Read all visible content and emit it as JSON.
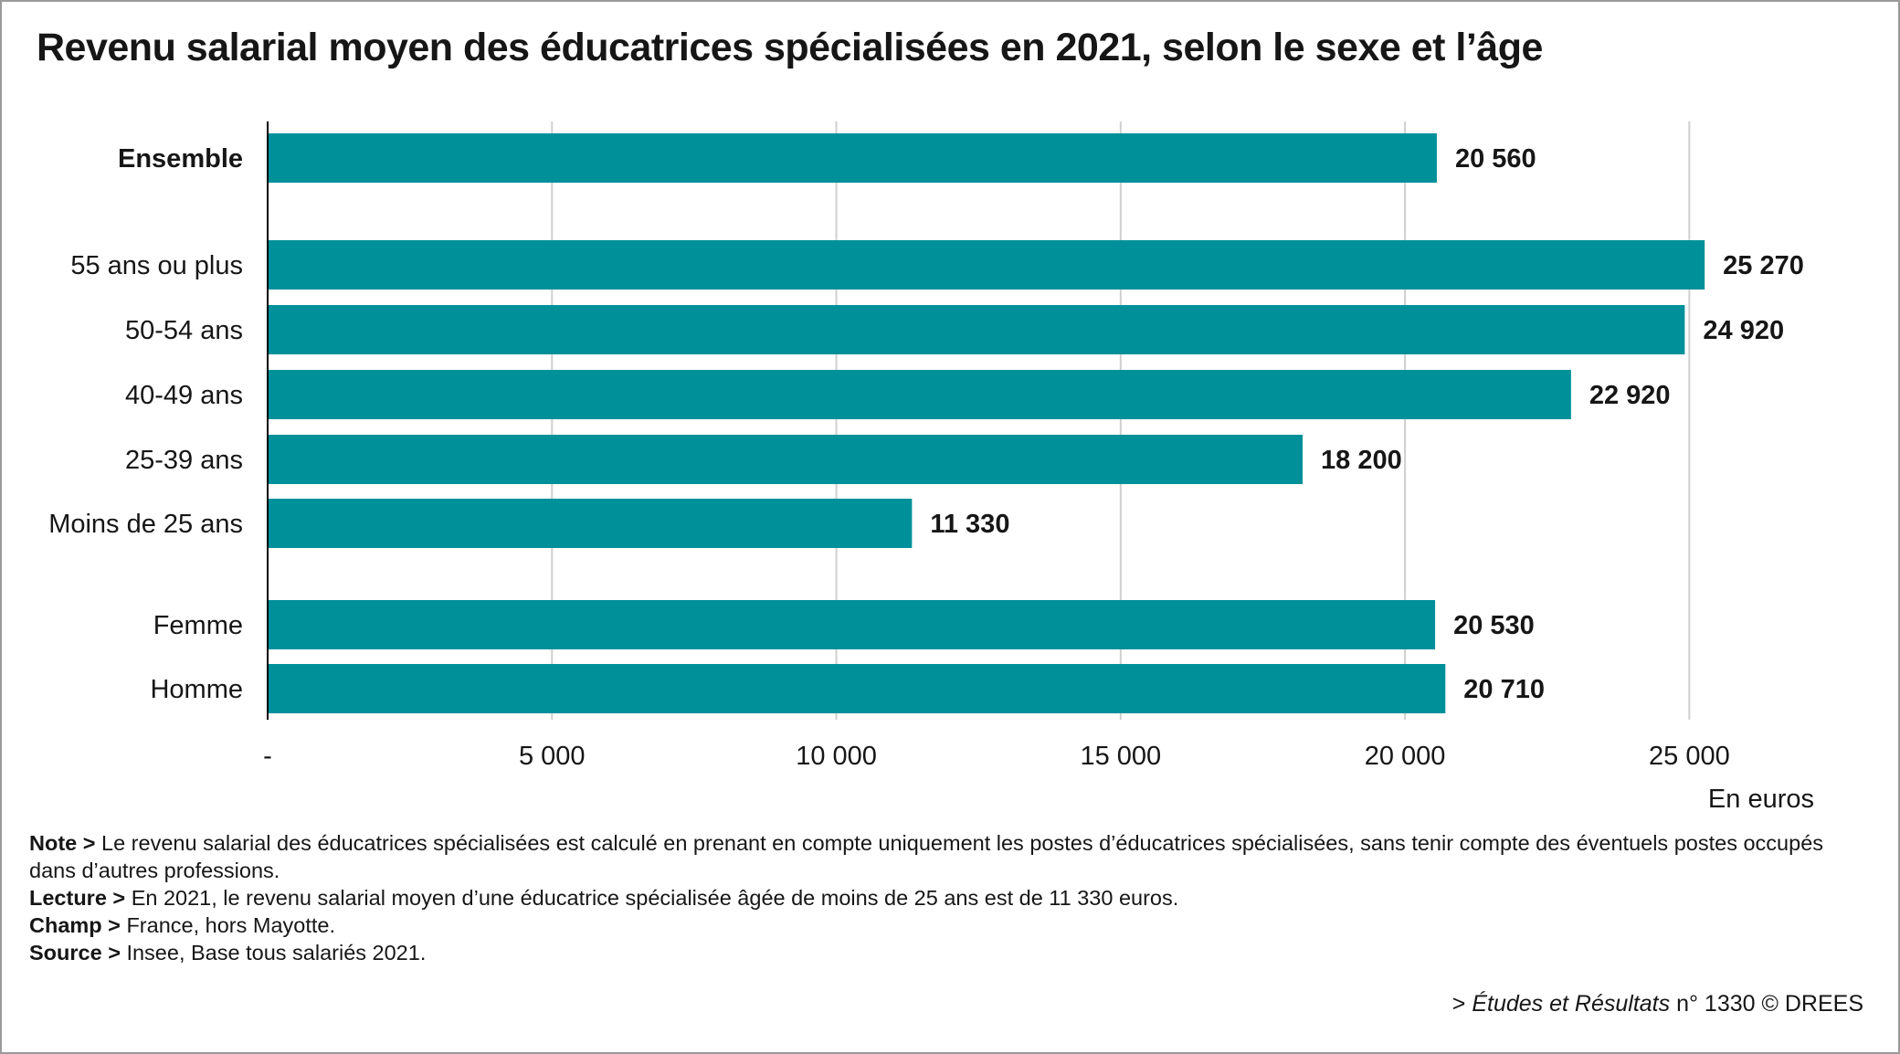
{
  "title": "Revenu salarial moyen des éducatrices spécialisées en 2021, selon le sexe et l’âge",
  "chart_data": {
    "type": "bar",
    "orientation": "horizontal",
    "categories": [
      "Ensemble",
      "55 ans ou plus",
      "50-54 ans",
      "40-49 ans",
      "25-39 ans",
      "Moins de 25 ans",
      "Femme",
      "Homme"
    ],
    "values": [
      20560,
      25270,
      24920,
      22920,
      18200,
      11330,
      20530,
      20710
    ],
    "value_labels": [
      "20 560",
      "25 270",
      "24 920",
      "22 920",
      "18 200",
      "11 330",
      "20 530",
      "20 710"
    ],
    "bold_categories": [
      "Ensemble"
    ],
    "xlim": [
      0,
      27500
    ],
    "x_ticks": [
      0,
      5000,
      10000,
      15000,
      20000,
      25000
    ],
    "x_tick_labels": [
      "-",
      "5 000",
      "10 000",
      "15 000",
      "20 000",
      "25 000"
    ],
    "xlabel": "En euros",
    "grid": true,
    "bar_color": "#009099"
  },
  "notes": {
    "note_label": "Note >",
    "note_text": "Le revenu salarial des éducatrices spécialisées est calculé en prenant en compte uniquement les postes d’éducatrices spécialisées, sans tenir compte des éventuels postes occupés dans d’autres professions.",
    "lecture_label": "Lecture >",
    "lecture_text": "En 2021, le revenu salarial moyen d’une éducatrice spécialisée âgée de moins de 25 ans est de 11 330 euros.",
    "champ_label": "Champ >",
    "champ_text": "France, hors Mayotte.",
    "source_label": "Source >",
    "source_text": "Insee, Base tous salariés 2021."
  },
  "credit": {
    "prefix": "> ",
    "publication": "Études et Résultats",
    "suffix": " n° 1330 © DREES"
  }
}
